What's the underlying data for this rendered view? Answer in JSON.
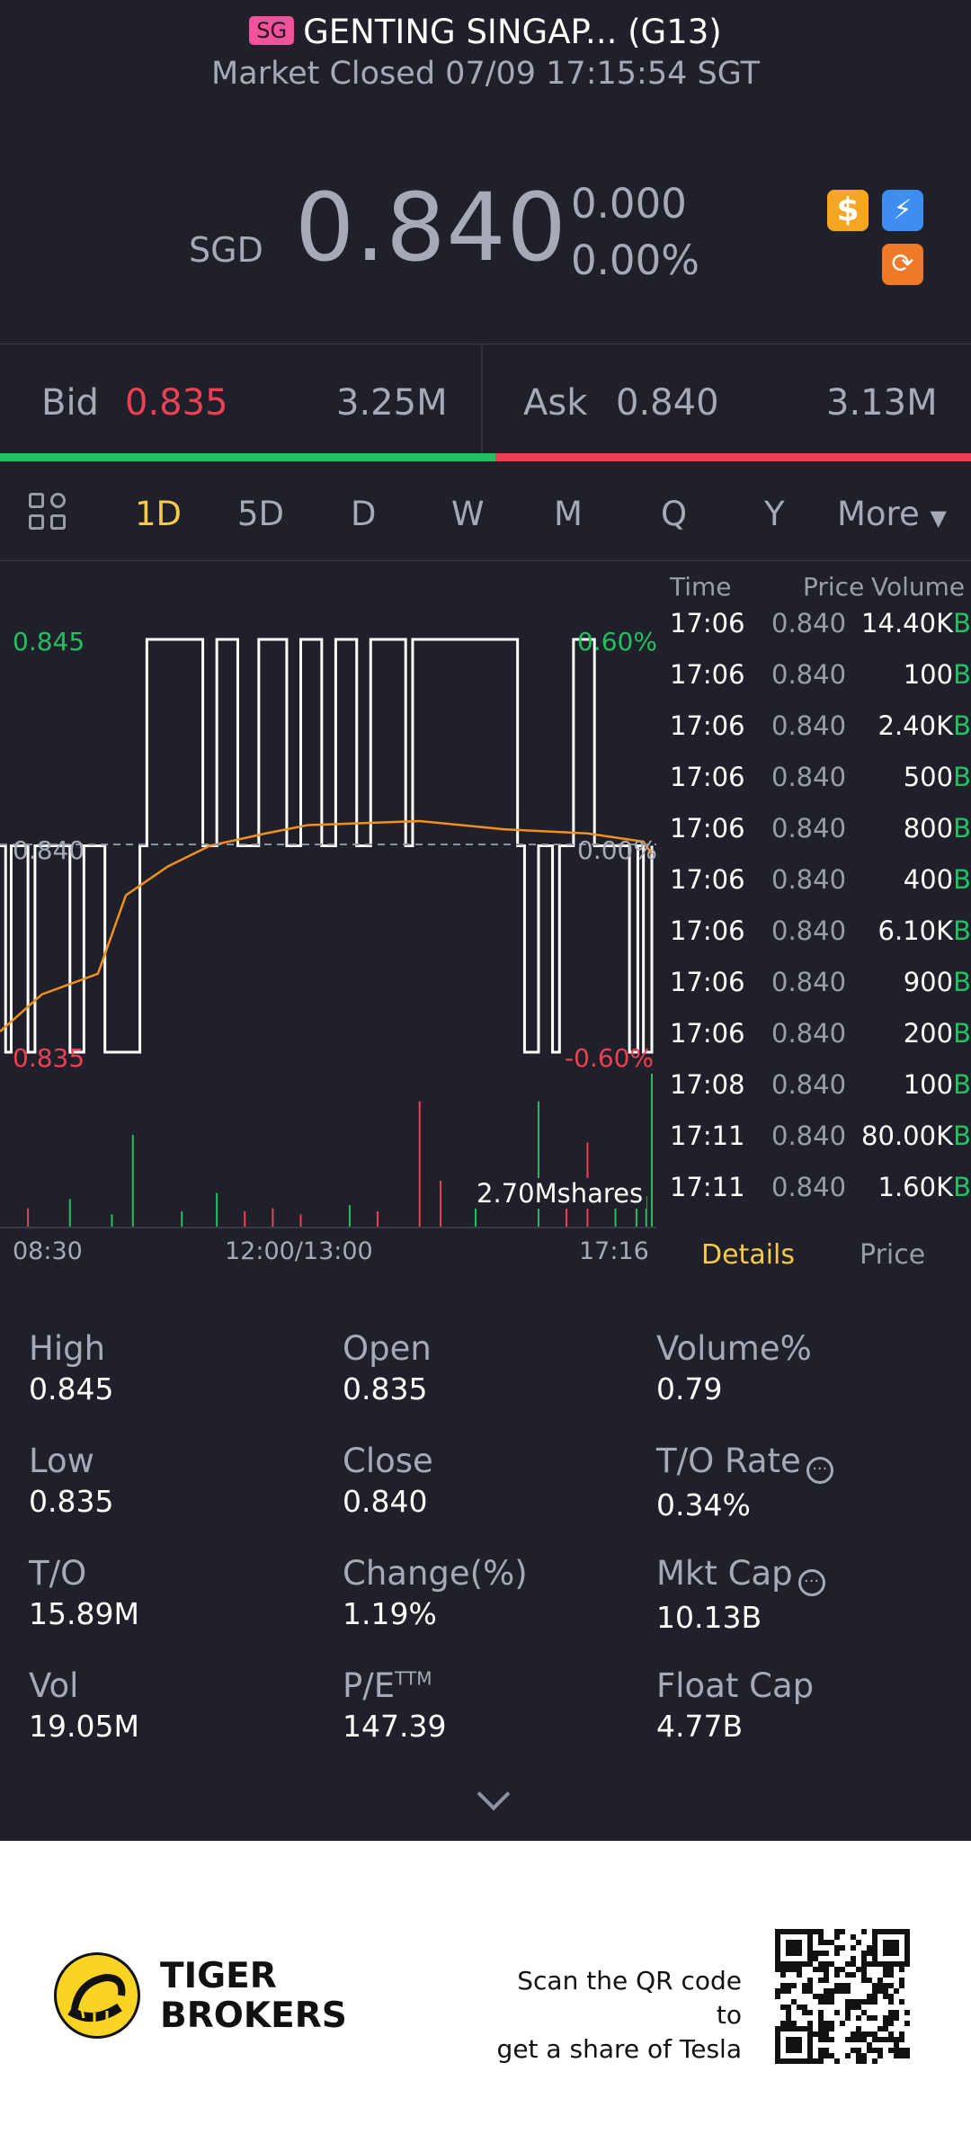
{
  "header": {
    "market_badge": "SG",
    "title": "GENTING SINGAP... (G13)",
    "subtitle": "Market Closed 07/09 17:15:54 SGT",
    "currency": "SGD",
    "price": "0.840",
    "change": "0.000",
    "change_pct": "0.00%",
    "badges": [
      "dollar-badge-icon",
      "lightning-badge-icon",
      "sync-badge-icon"
    ]
  },
  "quote": {
    "bid_label": "Bid",
    "bid_price": "0.835",
    "bid_size": "3.25M",
    "ask_label": "Ask",
    "ask_price": "0.840",
    "ask_size": "3.13M",
    "bid_ratio": 0.51
  },
  "tabs": [
    "1D",
    "5D",
    "D",
    "W",
    "M",
    "Q",
    "Y",
    "More"
  ],
  "active_tab": "1D",
  "chart_data": {
    "type": "line",
    "y_left_labels": {
      "top": "0.845",
      "mid": "0.840",
      "bottom": "0.835"
    },
    "y_right_labels": {
      "top": "0.60%",
      "mid": "0.00%",
      "bottom": "-0.60%"
    },
    "x_labels": [
      "08:30",
      "12:00/13:00",
      "17:16"
    ],
    "ylim": [
      0.835,
      0.845
    ],
    "volume_label": "2.70Mshares",
    "price_series": [
      {
        "t": "08:30",
        "v": 0.84
      },
      {
        "t": "08:34",
        "v": 0.835
      },
      {
        "t": "08:38",
        "v": 0.84
      },
      {
        "t": "08:50",
        "v": 0.835
      },
      {
        "t": "08:55",
        "v": 0.84
      },
      {
        "t": "09:20",
        "v": 0.835
      },
      {
        "t": "09:30",
        "v": 0.84
      },
      {
        "t": "09:45",
        "v": 0.835
      },
      {
        "t": "10:10",
        "v": 0.84
      },
      {
        "t": "10:15",
        "v": 0.845
      },
      {
        "t": "10:55",
        "v": 0.84
      },
      {
        "t": "11:05",
        "v": 0.845
      },
      {
        "t": "11:20",
        "v": 0.84
      },
      {
        "t": "11:35",
        "v": 0.845
      },
      {
        "t": "11:55",
        "v": 0.84
      },
      {
        "t": "13:05",
        "v": 0.845
      },
      {
        "t": "13:20",
        "v": 0.84
      },
      {
        "t": "13:30",
        "v": 0.845
      },
      {
        "t": "13:45",
        "v": 0.84
      },
      {
        "t": "13:55",
        "v": 0.845
      },
      {
        "t": "14:20",
        "v": 0.84
      },
      {
        "t": "14:25",
        "v": 0.845
      },
      {
        "t": "15:40",
        "v": 0.84
      },
      {
        "t": "15:45",
        "v": 0.835
      },
      {
        "t": "15:55",
        "v": 0.84
      },
      {
        "t": "16:05",
        "v": 0.835
      },
      {
        "t": "16:10",
        "v": 0.84
      },
      {
        "t": "16:20",
        "v": 0.845
      },
      {
        "t": "16:35",
        "v": 0.84
      },
      {
        "t": "17:00",
        "v": 0.835
      },
      {
        "t": "17:06",
        "v": 0.84
      },
      {
        "t": "17:10",
        "v": 0.835
      },
      {
        "t": "17:16",
        "v": 0.84
      }
    ],
    "avg_series": [
      {
        "t": "08:30",
        "v": 0.8355
      },
      {
        "t": "09:00",
        "v": 0.8364
      },
      {
        "t": "09:40",
        "v": 0.8369
      },
      {
        "t": "10:00",
        "v": 0.8388
      },
      {
        "t": "10:30",
        "v": 0.8395
      },
      {
        "t": "11:00",
        "v": 0.84
      },
      {
        "t": "11:40",
        "v": 0.8403
      },
      {
        "t": "13:10",
        "v": 0.8405
      },
      {
        "t": "14:30",
        "v": 0.8406
      },
      {
        "t": "15:30",
        "v": 0.8404
      },
      {
        "t": "16:30",
        "v": 0.8403
      },
      {
        "t": "17:10",
        "v": 0.8401
      },
      {
        "t": "17:16",
        "v": 0.8398
      }
    ],
    "volume_bars": [
      {
        "t": "08:50",
        "v": 0.12,
        "c": "red"
      },
      {
        "t": "09:20",
        "v": 0.18,
        "c": "green"
      },
      {
        "t": "09:50",
        "v": 0.08,
        "c": "green"
      },
      {
        "t": "10:05",
        "v": 0.6,
        "c": "green"
      },
      {
        "t": "10:40",
        "v": 0.1,
        "c": "green"
      },
      {
        "t": "11:05",
        "v": 0.22,
        "c": "green"
      },
      {
        "t": "11:25",
        "v": 0.1,
        "c": "red"
      },
      {
        "t": "11:45",
        "v": 0.12,
        "c": "red"
      },
      {
        "t": "13:05",
        "v": 0.08,
        "c": "red"
      },
      {
        "t": "13:40",
        "v": 0.14,
        "c": "green"
      },
      {
        "t": "14:00",
        "v": 0.1,
        "c": "red"
      },
      {
        "t": "14:30",
        "v": 0.82,
        "c": "red"
      },
      {
        "t": "14:45",
        "v": 0.3,
        "c": "red"
      },
      {
        "t": "15:10",
        "v": 0.12,
        "c": "green"
      },
      {
        "t": "15:55",
        "v": 0.82,
        "c": "green"
      },
      {
        "t": "16:15",
        "v": 0.18,
        "c": "red"
      },
      {
        "t": "16:30",
        "v": 0.55,
        "c": "red"
      },
      {
        "t": "16:50",
        "v": 0.14,
        "c": "green"
      },
      {
        "t": "17:05",
        "v": 0.3,
        "c": "green"
      },
      {
        "t": "17:12",
        "v": 0.2,
        "c": "green"
      },
      {
        "t": "17:16",
        "v": 1.0,
        "c": "green"
      }
    ]
  },
  "trades": {
    "headers": {
      "time": "Time",
      "price": "Price",
      "volume": "Volume"
    },
    "rows": [
      {
        "time": "17:06",
        "price": "0.840",
        "volume": "14.40K",
        "side": "B"
      },
      {
        "time": "17:06",
        "price": "0.840",
        "volume": "100",
        "side": "B"
      },
      {
        "time": "17:06",
        "price": "0.840",
        "volume": "2.40K",
        "side": "B"
      },
      {
        "time": "17:06",
        "price": "0.840",
        "volume": "500",
        "side": "B"
      },
      {
        "time": "17:06",
        "price": "0.840",
        "volume": "800",
        "side": "B"
      },
      {
        "time": "17:06",
        "price": "0.840",
        "volume": "400",
        "side": "B"
      },
      {
        "time": "17:06",
        "price": "0.840",
        "volume": "6.10K",
        "side": "B"
      },
      {
        "time": "17:06",
        "price": "0.840",
        "volume": "900",
        "side": "B"
      },
      {
        "time": "17:06",
        "price": "0.840",
        "volume": "200",
        "side": "B"
      },
      {
        "time": "17:08",
        "price": "0.840",
        "volume": "100",
        "side": "B"
      },
      {
        "time": "17:11",
        "price": "0.840",
        "volume": "80.00K",
        "side": "B"
      },
      {
        "time": "17:11",
        "price": "0.840",
        "volume": "1.60K",
        "side": "B"
      }
    ],
    "tab_details": "Details",
    "tab_price": "Price"
  },
  "stats": [
    {
      "label": "High",
      "value": "0.845"
    },
    {
      "label": "Open",
      "value": "0.835"
    },
    {
      "label": "Volume%",
      "value": "0.79"
    },
    {
      "label": "Low",
      "value": "0.835"
    },
    {
      "label": "Close",
      "value": "0.840"
    },
    {
      "label": "T/O Rate",
      "value": "0.34%",
      "info": true
    },
    {
      "label": "T/O",
      "value": "15.89M"
    },
    {
      "label": "Change(%)",
      "value": "1.19%"
    },
    {
      "label": "Mkt Cap",
      "value": "10.13B",
      "info": true
    },
    {
      "label": "Vol",
      "value": "19.05M"
    },
    {
      "label": "P/E",
      "label_sup": "TTM",
      "value": "147.39"
    },
    {
      "label": "Float Cap",
      "value": "4.77B"
    }
  ],
  "footer": {
    "brand_line1": "TIGER",
    "brand_line2": "BROKERS",
    "promo_line1": "Scan the QR code to",
    "promo_line2": "get a share of Tesla"
  },
  "colors": {
    "up": "#21c063",
    "down": "#ee4055",
    "avg_line": "#f0901e",
    "accent": "#f7c948",
    "background": "#1f2029"
  }
}
